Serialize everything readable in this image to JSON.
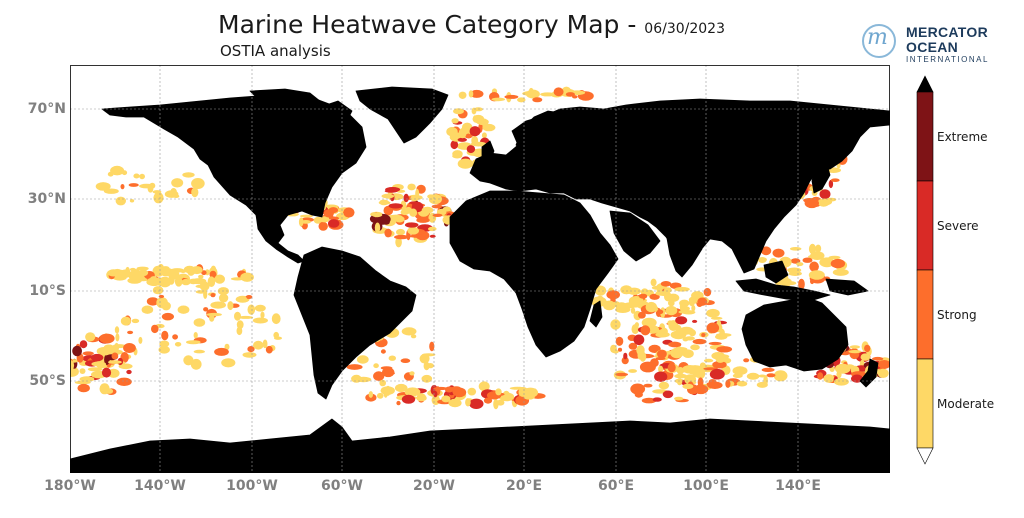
{
  "header": {
    "title": "Marine Heatwave Category Map - ",
    "date": "06/30/2023",
    "subtitle": "OSTIA analysis"
  },
  "logo": {
    "name_line1": "MERCATOR",
    "name_line2": "OCEAN",
    "name_line3": "INTERNATIONAL",
    "mark": "m"
  },
  "map": {
    "lat_labels": [
      "70°N",
      "30°N",
      "10°S",
      "50°S"
    ],
    "lon_labels": [
      "180°W",
      "140°W",
      "100°W",
      "60°W",
      "20°W",
      "20°E",
      "60°E",
      "100°E",
      "140°E"
    ],
    "land_color": "#d3d3d3",
    "ocean_color": "#ffffff",
    "coast_color": "#000000",
    "grid_color": "#999999"
  },
  "colorbar": {
    "categories": [
      "Moderate",
      "Strong",
      "Severe",
      "Extreme"
    ],
    "colors": [
      "#fed866",
      "#fd6e2c",
      "#d92a26",
      "#7e1316"
    ],
    "over_color": "#000000",
    "under_color": "#ffffff"
  }
}
